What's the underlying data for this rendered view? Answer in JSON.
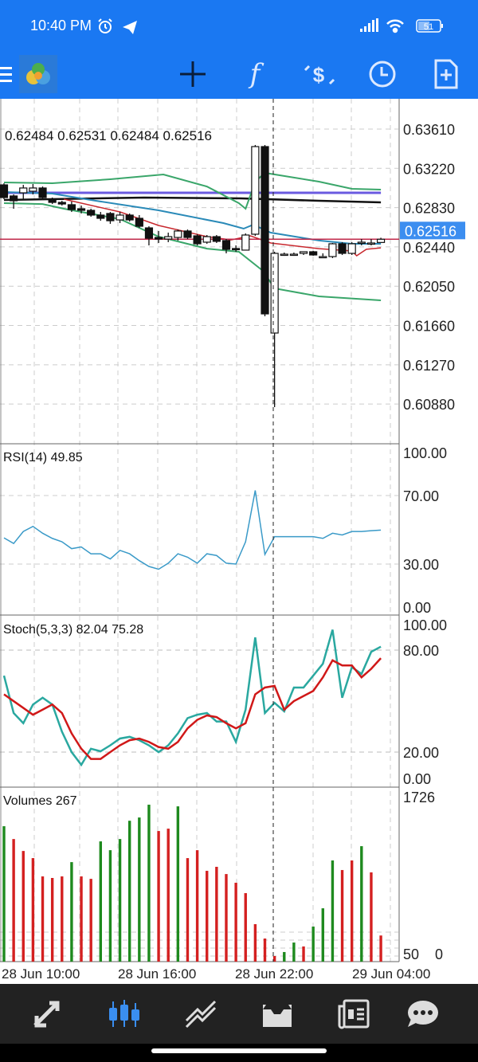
{
  "status_bar": {
    "time": "10:40 PM",
    "battery": "51",
    "icons": [
      "alarm-icon",
      "telegram-icon",
      "signal-icon",
      "wifi-icon",
      "battery-icon"
    ]
  },
  "toolbar": {
    "icons": [
      "menu-icon",
      "mt4-logo",
      "crosshair-icon",
      "indicators-f-icon",
      "trade-symbols-icon",
      "timeframe-clock-icon",
      "new-order-icon"
    ],
    "indicator_glyph": "f"
  },
  "colors": {
    "header": "#1a78f2",
    "bull_volume": "#1e8a1e",
    "bear_volume": "#d42020",
    "bb": "#3aa66a",
    "ma_mid": "#2a8ab8",
    "ma_red": "#c8282e",
    "ma_black": "#111111",
    "level_purple": "#6a5ae0",
    "price_line": "#c0284a",
    "price_tag": "#3c8ef0",
    "rsi": "#3a9ac8",
    "stoch_main": "#2aa8a0",
    "stoch_signal": "#d01818"
  },
  "main": {
    "ohlc_label": "0.62484 0.62531 0.62484 0.62516",
    "price_ticks": [
      "0.63610",
      "0.63220",
      "0.62830",
      "0.62440",
      "0.62050",
      "0.61660",
      "0.61270",
      "0.60880"
    ],
    "current_price": "0.62516",
    "candles": [
      [
        0.63056,
        0.63072,
        0.62914,
        0.6293
      ],
      [
        0.62946,
        0.62961,
        0.62819,
        0.62898
      ],
      [
        0.62977,
        0.63056,
        0.62914,
        0.63025
      ],
      [
        0.62993,
        0.63064,
        0.62961,
        0.63025
      ],
      [
        0.63025,
        0.6304,
        0.62914,
        0.6293
      ],
      [
        0.62914,
        0.6293,
        0.62866,
        0.62882
      ],
      [
        0.62882,
        0.62898,
        0.62851,
        0.62866
      ],
      [
        0.62859,
        0.6289,
        0.62787,
        0.62811
      ],
      [
        0.62819,
        0.62851,
        0.62772,
        0.62803
      ],
      [
        0.62803,
        0.62819,
        0.6274,
        0.62756
      ],
      [
        0.62756,
        0.62787,
        0.627,
        0.62724
      ],
      [
        0.62772,
        0.62787,
        0.62669,
        0.627
      ],
      [
        0.62708,
        0.62787,
        0.62677,
        0.62756
      ],
      [
        0.62756,
        0.62772,
        0.62692,
        0.62708
      ],
      [
        0.62724,
        0.62756,
        0.62629,
        0.62645
      ],
      [
        0.62629,
        0.62645,
        0.62455,
        0.62526
      ],
      [
        0.62534,
        0.62598,
        0.62479,
        0.62518
      ],
      [
        0.62518,
        0.62582,
        0.62487,
        0.62542
      ],
      [
        0.62534,
        0.62613,
        0.62503,
        0.62598
      ],
      [
        0.62598,
        0.62613,
        0.62518,
        0.62534
      ],
      [
        0.6255,
        0.62566,
        0.62455,
        0.62471
      ],
      [
        0.62487,
        0.62558,
        0.62471,
        0.62542
      ],
      [
        0.62542,
        0.62558,
        0.62479,
        0.62495
      ],
      [
        0.62503,
        0.62518,
        0.62376,
        0.62416
      ],
      [
        0.62424,
        0.62455,
        0.62392,
        0.62416
      ],
      [
        0.62408,
        0.62574,
        0.62408,
        0.62558
      ],
      [
        0.62566,
        0.63452,
        0.6255,
        0.63436
      ],
      [
        0.63436,
        0.63452,
        0.61751,
        0.61775
      ],
      [
        0.61585,
        0.62392,
        0.60849,
        0.62376
      ],
      [
        0.62368,
        0.62384,
        0.62352,
        0.62368
      ],
      [
        0.62368,
        0.62384,
        0.62352,
        0.62368
      ],
      [
        0.62376,
        0.62392,
        0.6236,
        0.62392
      ],
      [
        0.62392,
        0.624,
        0.62352,
        0.6236
      ],
      [
        0.62344,
        0.62376,
        0.62329,
        0.62344
      ],
      [
        0.62344,
        0.62479,
        0.62329,
        0.62471
      ],
      [
        0.62471,
        0.62487,
        0.6236,
        0.62376
      ],
      [
        0.62376,
        0.62487,
        0.6236,
        0.62471
      ],
      [
        0.62479,
        0.62518,
        0.62455,
        0.62487
      ],
      [
        0.62479,
        0.62518,
        0.62455,
        0.62479
      ],
      [
        0.62484,
        0.62531,
        0.62484,
        0.62516
      ]
    ],
    "lines": {
      "bb_upper": [
        [
          0,
          0.6308
        ],
        [
          5,
          0.63072
        ],
        [
          11,
          0.63112
        ],
        [
          16.5,
          0.63159
        ],
        [
          21,
          0.6304
        ],
        [
          24.3,
          0.62874
        ],
        [
          25,
          0.62819
        ],
        [
          26,
          0.63088
        ],
        [
          27,
          0.63175
        ],
        [
          32.6,
          0.63088
        ],
        [
          36,
          0.63017
        ],
        [
          39,
          0.63009
        ]
      ],
      "bb_middle": [
        [
          0,
          0.62985
        ],
        [
          5,
          0.62969
        ],
        [
          9.5,
          0.62898
        ],
        [
          16,
          0.62803
        ],
        [
          22.7,
          0.62677
        ],
        [
          24.8,
          0.62621
        ],
        [
          25.8,
          0.62661
        ],
        [
          27.6,
          0.62582
        ],
        [
          32.6,
          0.62503
        ],
        [
          36,
          0.62471
        ],
        [
          39,
          0.62471
        ]
      ],
      "bb_lower": [
        [
          0,
          0.62874
        ],
        [
          4,
          0.62866
        ],
        [
          6.2,
          0.62819
        ],
        [
          12,
          0.62716
        ],
        [
          16,
          0.62542
        ],
        [
          21,
          0.62423
        ],
        [
          24.3,
          0.62392
        ],
        [
          26.8,
          0.62202
        ],
        [
          28,
          0.62028
        ],
        [
          32.6,
          0.61949
        ],
        [
          39,
          0.61909
        ]
      ],
      "ma_red": [
        [
          6.2,
          0.62914
        ],
        [
          12,
          0.62787
        ],
        [
          16,
          0.62653
        ],
        [
          21,
          0.62542
        ],
        [
          23.5,
          0.6251
        ],
        [
          25.5,
          0.6255
        ],
        [
          27.6,
          0.62479
        ],
        [
          32.6,
          0.62423
        ],
        [
          36,
          0.624
        ],
        [
          36.5,
          0.62352
        ],
        [
          37.5,
          0.62416
        ],
        [
          39,
          0.62431
        ]
      ],
      "ma_black": [
        [
          0,
          0.62906
        ],
        [
          14.5,
          0.6293
        ],
        [
          24.5,
          0.62922
        ],
        [
          32.6,
          0.62898
        ],
        [
          39,
          0.62882
        ]
      ],
      "level_purple": [
        [
          0,
          0.62977
        ],
        [
          39,
          0.62977
        ]
      ]
    }
  },
  "rsi": {
    "label": "RSI(14) 49.85",
    "ticks": [
      "100.00",
      "70.00",
      "30.00",
      "0.00"
    ],
    "values": [
      45.3,
      42,
      49,
      52,
      48,
      45,
      43,
      39,
      40,
      36,
      36,
      33,
      38,
      36,
      32,
      28.6,
      27,
      30.5,
      36,
      34,
      30.5,
      36,
      35,
      30.5,
      30,
      43,
      73,
      35.6,
      46,
      46,
      46,
      46,
      46,
      45,
      48,
      47,
      49,
      49,
      49.5,
      49.85
    ]
  },
  "stoch": {
    "label": "Stoch(5,3,3) 82.04 75.28",
    "ticks": [
      "100.00",
      "80.00",
      "20.00",
      "0.00"
    ],
    "main": [
      65,
      43,
      37,
      48,
      52,
      48,
      32,
      20,
      12.5,
      22,
      20.5,
      24,
      28,
      29,
      27,
      24,
      20,
      24,
      31,
      40,
      42,
      43,
      38,
      38,
      26,
      45,
      87.5,
      43,
      49,
      44,
      58,
      58,
      65,
      72,
      92,
      52,
      70,
      66,
      79,
      82.04
    ],
    "signal": [
      54,
      50,
      46,
      42,
      45,
      48,
      43,
      31,
      22,
      16,
      16,
      20,
      24,
      27,
      28,
      26,
      23,
      22,
      26,
      34,
      39,
      41.6,
      40.6,
      37,
      34,
      37,
      54,
      58,
      59,
      45,
      50,
      53,
      56,
      64,
      74,
      71,
      71,
      64,
      69,
      75.28
    ]
  },
  "volumes": {
    "label": "Volumes 267",
    "ticks": [
      "1726",
      "50",
      "0"
    ],
    "values": [
      1384,
      1253,
      1131,
      1058,
      871,
      855,
      871,
      1017,
      871,
      846,
      1229,
      1139,
      1253,
      1440,
      1473,
      1604,
      1335,
      1359,
      1587,
      1058,
      1139,
      928,
      969,
      895,
      806,
      700,
      383,
      236,
      57,
      98,
      195,
      155,
      358,
      545,
      1034,
      936,
      1034,
      1180,
      912,
      267
    ],
    "up": [
      1,
      0,
      0,
      0,
      0,
      0,
      0,
      1,
      0,
      0,
      1,
      1,
      1,
      1,
      1,
      1,
      0,
      0,
      1,
      0,
      0,
      0,
      0,
      0,
      0,
      0,
      0,
      0,
      0,
      1,
      1,
      0,
      1,
      1,
      1,
      0,
      0,
      1,
      0,
      0
    ]
  },
  "time_axis": [
    "28 Jun 10:00",
    "28 Jun 16:00",
    "28 Jun 22:00",
    "29 Jun 04:00"
  ],
  "bottom_nav": {
    "items": [
      "trade-icon",
      "chart-icon",
      "history-icon",
      "inbox-icon",
      "news-icon",
      "chat-icon"
    ],
    "active": "chart-icon"
  }
}
